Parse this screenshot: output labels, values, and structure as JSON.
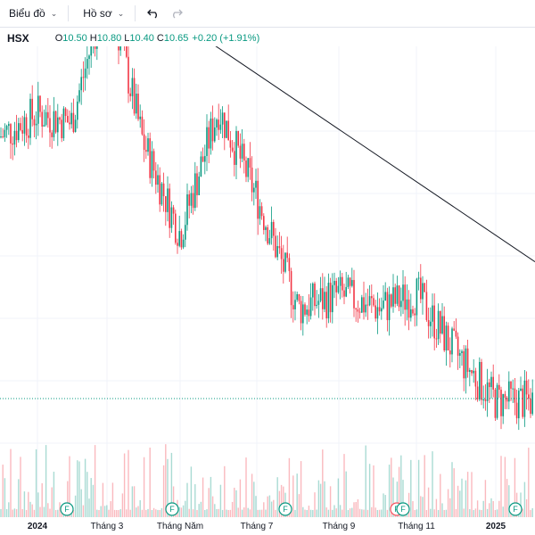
{
  "toolbar": {
    "chart_label": "Biểu đồ",
    "profile_label": "Hồ sơ"
  },
  "legend": {
    "symbol": "HSX",
    "o_label": "O",
    "o_value": "10.50",
    "h_label": "H",
    "h_value": "10.80",
    "l_label": "L",
    "l_value": "10.40",
    "c_label": "C",
    "c_value": "10.65",
    "change": "+0.20 (+1.91%)"
  },
  "x_axis": {
    "labels": [
      "2024",
      "Tháng 3",
      "Tháng Năm",
      "Tháng 7",
      "Tháng 9",
      "Tháng 11",
      "2025"
    ]
  },
  "event_marker_label": "F",
  "colors": {
    "up": "#089981",
    "down": "#f23645",
    "trendline": "#131722",
    "grid": "#f0f3fa",
    "price_line": "#089981"
  },
  "chart_data": {
    "type": "candlestick",
    "symbol": "HSX",
    "x_ticks": [
      "2024",
      "Tháng 3",
      "Tháng Năm",
      "Tháng 7",
      "Tháng 9",
      "Tháng 11",
      "2025"
    ],
    "trend": [
      {
        "month": "Jan-2024",
        "close": 16.8
      },
      {
        "month": "Feb-2024",
        "close": 16.6
      },
      {
        "month": "Mar-2024",
        "close": 19.6
      },
      {
        "month": "Apr-2024",
        "close": 16.2
      },
      {
        "month": "May-2024",
        "close": 14.2
      },
      {
        "month": "Jun-2024",
        "close": 16.9
      },
      {
        "month": "Jul-2024",
        "close": 15.0
      },
      {
        "month": "Aug-2024",
        "close": 12.6
      },
      {
        "month": "Sep-2024",
        "close": 12.9
      },
      {
        "month": "Oct-2024",
        "close": 12.6
      },
      {
        "month": "Nov-2024",
        "close": 12.9
      },
      {
        "month": "Dec-2024",
        "close": 11.6
      },
      {
        "month": "Jan-2025",
        "close": 10.6
      }
    ],
    "last": {
      "open": 10.5,
      "high": 10.8,
      "low": 10.4,
      "close": 10.65,
      "change": 0.2,
      "change_pct": 1.91
    },
    "trendline": [
      {
        "month": "Mar-2024",
        "price": 19.9
      },
      {
        "month": "Feb-2025",
        "price": 13.6
      }
    ]
  }
}
